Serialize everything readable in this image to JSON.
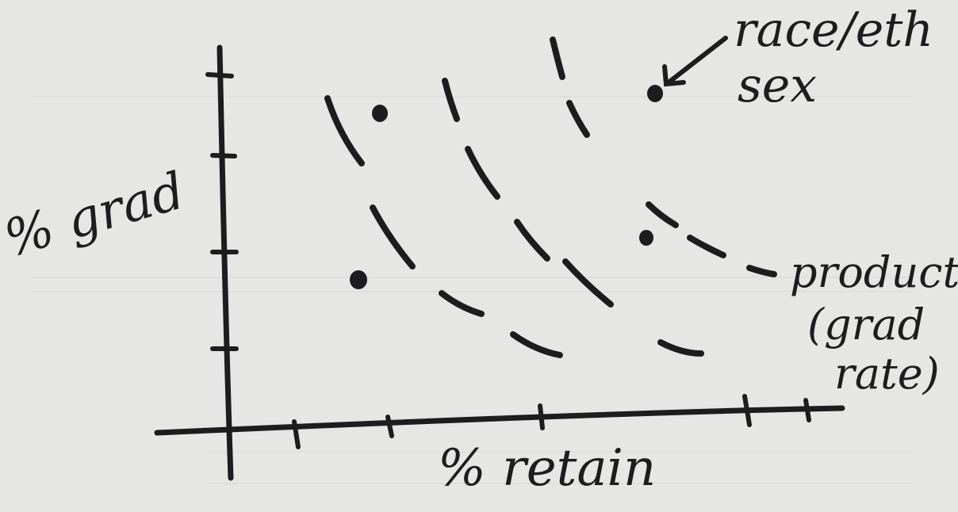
{
  "diagram": {
    "x_axis_label": "% retain",
    "y_axis_label": "% grad",
    "annotation_points_label": "race/eth\nsex",
    "annotation_curves_label": "product\n(grad\nrate)",
    "ink_color": "#1d1d1f",
    "paper_color": "#e6e7e4"
  }
}
